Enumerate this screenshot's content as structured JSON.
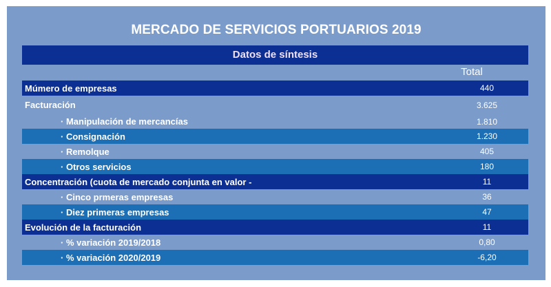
{
  "title": "MERCADO DE SERVICIOS PORTUARIOS 2019",
  "header": "Datos de síntesis",
  "total_label": "Total",
  "rows": [
    {
      "label": "Múmero de empresas",
      "value": "440"
    },
    {
      "label": "Facturación",
      "value": "3.625"
    },
    {
      "label": "· Manipulación de mercancías",
      "value": "1.810"
    },
    {
      "label": "· Consignación",
      "value": "1.230"
    },
    {
      "label": "· Remolque",
      "value": "405"
    },
    {
      "label": "· Otros servicios",
      "value": "180"
    },
    {
      "label": "Concentración (cuota de mercado conjunta en valor -",
      "value": "11"
    },
    {
      "label": "· Cinco prmeras empresas",
      "value": "36"
    },
    {
      "label": "· Diez primeras empresas",
      "value": "47"
    },
    {
      "label": "Evolución de la facturación",
      "value": "11"
    },
    {
      "label": "· % variación 2019/2018",
      "value": "0,80"
    },
    {
      "label": "· % variación 2020/2019",
      "value": "-6,20"
    }
  ],
  "colors": {
    "background": "#7b9ccb",
    "dark_row": "#0c2f93",
    "mid_row": "#1c6fb5"
  }
}
